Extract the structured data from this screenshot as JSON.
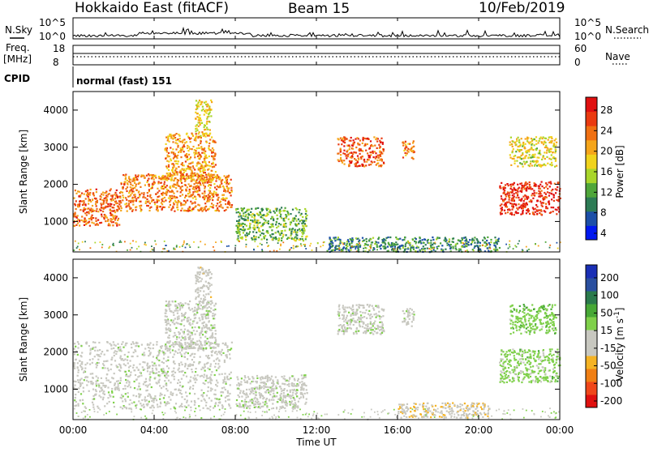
{
  "header": {
    "station": "Hokkaido East (fitACF)",
    "beam": "Beam 15",
    "date": "10/Feb/2019"
  },
  "top_panels": {
    "nsky_label": "N.Sky",
    "nsky_ticks": [
      "10^5",
      "10^0"
    ],
    "nsearch_label": "N.Search",
    "nsearch_ticks": [
      "10^5",
      "10^0"
    ],
    "freq_label": "Freq.",
    "freq_unit": "[MHz]",
    "freq_ticks": [
      "18",
      "8"
    ],
    "nave_label": "Nave",
    "nave_ticks": [
      "60",
      "0"
    ],
    "cpid_label": "CPID",
    "cpid_value": "normal (fast) 151"
  },
  "chart_data": [
    {
      "type": "heatmap",
      "panel": "power",
      "ylabel": "Slant Range [km]",
      "y_ticks": [
        "4000",
        "3000",
        "2000",
        "1000"
      ],
      "ylim": [
        180,
        4500
      ],
      "xlim": [
        "00:00",
        "24:00"
      ],
      "colorbar": {
        "label": "Power [dB]",
        "ticks": [
          "28",
          "24",
          "20",
          "16",
          "12",
          "8",
          "4"
        ],
        "colors": [
          "#0018f0",
          "#1c4fa8",
          "#2d7b55",
          "#4fa63a",
          "#a9d62b",
          "#f0d31c",
          "#f5a51a",
          "#f07012",
          "#ea3a10",
          "#e01010"
        ],
        "range": [
          0,
          30
        ]
      },
      "regions": [
        {
          "t0": 0.0,
          "t1": 2.3,
          "r0": 900,
          "r1": 1900,
          "level": 23
        },
        {
          "t0": 2.3,
          "t1": 7.8,
          "r0": 1300,
          "r1": 2300,
          "level": 22
        },
        {
          "t0": 4.5,
          "t1": 7.0,
          "r0": 2100,
          "r1": 3400,
          "level": 20
        },
        {
          "t0": 6.0,
          "t1": 6.8,
          "r0": 3300,
          "r1": 4300,
          "level": 17
        },
        {
          "t0": 8.0,
          "t1": 11.5,
          "r0": 500,
          "r1": 1400,
          "level": 11
        },
        {
          "t0": 13.0,
          "t1": 15.3,
          "r0": 2500,
          "r1": 3300,
          "level": 24
        },
        {
          "t0": 16.2,
          "t1": 16.8,
          "r0": 2700,
          "r1": 3200,
          "level": 21
        },
        {
          "t0": 21.0,
          "t1": 24.0,
          "r0": 1200,
          "r1": 2100,
          "level": 27
        },
        {
          "t0": 21.5,
          "t1": 23.8,
          "r0": 2500,
          "r1": 3300,
          "level": 16
        },
        {
          "t0": 12.5,
          "t1": 21.0,
          "r0": 200,
          "r1": 600,
          "level": 8
        }
      ]
    },
    {
      "type": "heatmap",
      "panel": "velocity",
      "ylabel": "Slant Range [km]",
      "y_ticks": [
        "4000",
        "3000",
        "2000",
        "1000"
      ],
      "ylim": [
        180,
        4500
      ],
      "xlabel": "Time UT",
      "x_ticks": [
        "00:00",
        "04:00",
        "08:00",
        "12:00",
        "16:00",
        "20:00",
        "00:00"
      ],
      "xlim": [
        "00:00",
        "24:00"
      ],
      "colorbar": {
        "label": "Velocity [m s",
        "label_sup": "-1",
        "label_close": "]",
        "ticks": [
          "200",
          "100",
          "50",
          "15",
          "-15",
          "-50",
          "-100",
          "-200"
        ],
        "colors": [
          "#e0100f",
          "#f0471a",
          "#f07f14",
          "#f5b324",
          "#c8c8c0",
          "#c8c8c0",
          "#7fd04a",
          "#47a836",
          "#2b7a4c",
          "#2a4f9f",
          "#1a2fb5"
        ],
        "range": [
          -250,
          250
        ]
      },
      "regions": [
        {
          "t0": 0.0,
          "t1": 7.8,
          "r0": 500,
          "r1": 2300,
          "level": 0
        },
        {
          "t0": 4.5,
          "t1": 7.0,
          "r0": 2100,
          "r1": 3400,
          "level": 0
        },
        {
          "t0": 6.0,
          "t1": 6.8,
          "r0": 3300,
          "r1": 4300,
          "level": -40
        },
        {
          "t0": 8.0,
          "t1": 11.5,
          "r0": 500,
          "r1": 1400,
          "level": 0
        },
        {
          "t0": 13.0,
          "t1": 15.3,
          "r0": 2500,
          "r1": 3300,
          "level": 0
        },
        {
          "t0": 16.2,
          "t1": 16.8,
          "r0": 2700,
          "r1": 3200,
          "level": 0
        },
        {
          "t0": 21.0,
          "t1": 24.0,
          "r0": 1200,
          "r1": 2100,
          "level": 40
        },
        {
          "t0": 21.5,
          "t1": 23.8,
          "r0": 2500,
          "r1": 3300,
          "level": 50
        },
        {
          "t0": 16.0,
          "t1": 20.5,
          "r0": 250,
          "r1": 650,
          "level": -60
        }
      ]
    }
  ]
}
